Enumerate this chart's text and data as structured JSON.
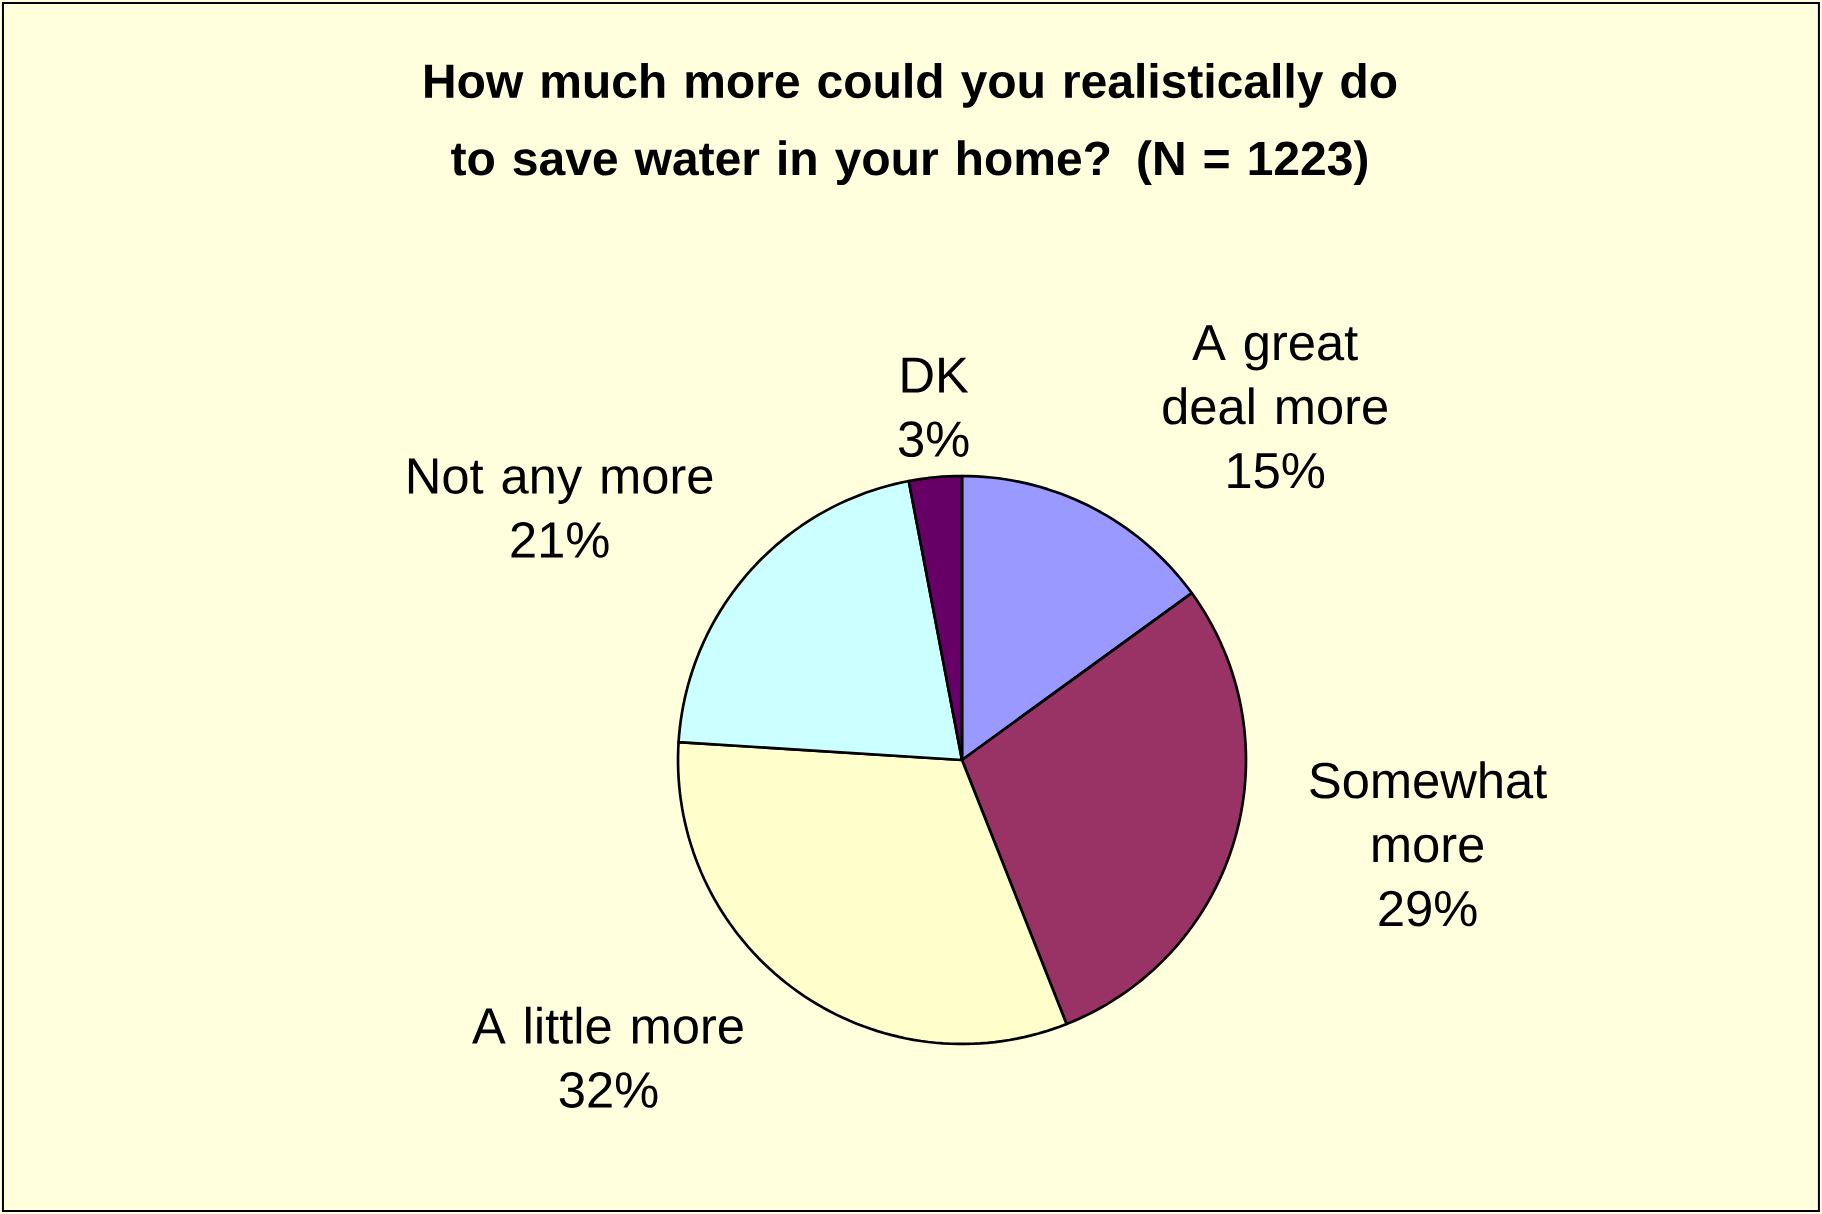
{
  "chart_data": {
    "type": "pie",
    "title": "How much more could you realistically do to save water in your home?  (N = 1223)",
    "categories": [
      "A great deal more",
      "Somewhat more",
      "A little more",
      "Not any more",
      "DK"
    ],
    "values": [
      15,
      29,
      32,
      21,
      3
    ],
    "value_labels": [
      "15%",
      "29%",
      "32%",
      "21%",
      "3%"
    ],
    "colors": [
      "#9999ff",
      "#993366",
      "#ffffcc",
      "#ccffff",
      "#660066"
    ]
  }
}
